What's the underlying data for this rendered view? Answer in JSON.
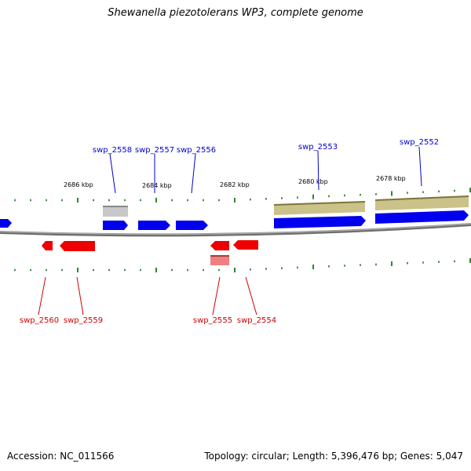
{
  "title": "Shewanella piezotolerans WP3, complete genome",
  "footer": {
    "accession": "Accession: NC_011566",
    "summary": "Topology: circular; Length: 5,396,476 bp; Genes: 5,047"
  },
  "colors": {
    "forward_gene": "#0000ee",
    "reverse_gene": "#ee0000",
    "forward_label": "#0000cc",
    "reverse_label": "#cc0000",
    "olive_feature": "#c8bf86",
    "grey_feature": "#c4c4c4",
    "pink_feature": "#f08080",
    "tick": "#006400",
    "backbone": "#808080"
  },
  "scale_labels": [
    "2686 kbp",
    "2684 kbp",
    "2682 kbp",
    "2680 kbp",
    "2678 kbp"
  ],
  "forward_genes": [
    "swp_2558",
    "swp_2557",
    "swp_2556",
    "swp_2553",
    "swp_2552"
  ],
  "reverse_genes": [
    "swp_2560",
    "swp_2559",
    "swp_2555",
    "swp_2554"
  ]
}
